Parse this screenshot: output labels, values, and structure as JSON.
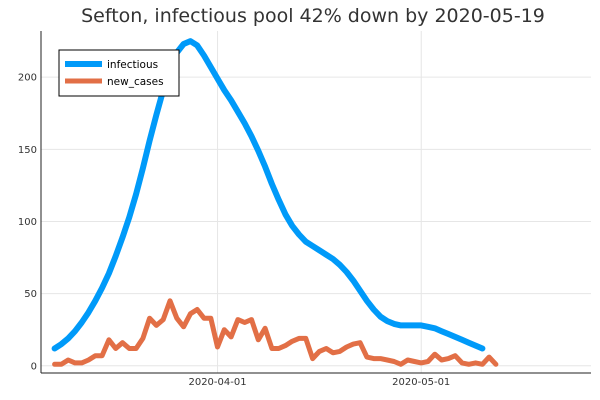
{
  "chart_data": {
    "type": "line",
    "title": "Sefton, infectious pool 42% down by 2020-05-19",
    "xlabel": "",
    "ylabel": "",
    "x_start": "2020-03-08",
    "xlim": [
      "2020-03-06",
      "2020-05-26"
    ],
    "ylim": [
      -5,
      232
    ],
    "x_ticks": [
      {
        "date": "2020-04-01",
        "label": "2020-04-01"
      },
      {
        "date": "2020-05-01",
        "label": "2020-05-01"
      }
    ],
    "y_ticks": [
      0,
      50,
      100,
      150,
      200
    ],
    "grid": true,
    "legend": "top-left",
    "series": [
      {
        "name": "infectious",
        "color": "#009af9",
        "values": [
          12,
          15,
          19,
          24,
          30,
          37,
          45,
          54,
          64,
          76,
          89,
          103,
          119,
          137,
          156,
          174,
          191,
          206,
          217,
          223,
          225,
          222,
          215,
          207,
          199,
          191,
          184,
          176,
          168,
          159,
          149,
          138,
          126,
          115,
          105,
          97,
          91,
          86,
          83,
          80,
          77,
          74,
          70,
          65,
          59,
          52,
          45,
          39,
          34,
          31,
          29,
          28,
          28,
          28,
          28,
          27,
          26,
          24,
          22,
          20,
          18,
          16,
          14,
          12
        ]
      },
      {
        "name": "new_cases",
        "color": "#e26f46",
        "values": [
          1,
          1,
          4,
          2,
          2,
          4,
          7,
          7,
          18,
          12,
          16,
          12,
          12,
          19,
          33,
          28,
          32,
          45,
          33,
          27,
          36,
          39,
          33,
          33,
          13,
          25,
          20,
          32,
          30,
          32,
          18,
          26,
          12,
          12,
          14,
          17,
          19,
          19,
          5,
          10,
          12,
          9,
          10,
          13,
          15,
          16,
          6,
          5,
          5,
          4,
          3,
          1,
          4,
          3,
          2,
          3,
          8,
          4,
          5,
          7,
          2,
          1,
          2,
          1,
          6,
          1
        ]
      }
    ]
  }
}
